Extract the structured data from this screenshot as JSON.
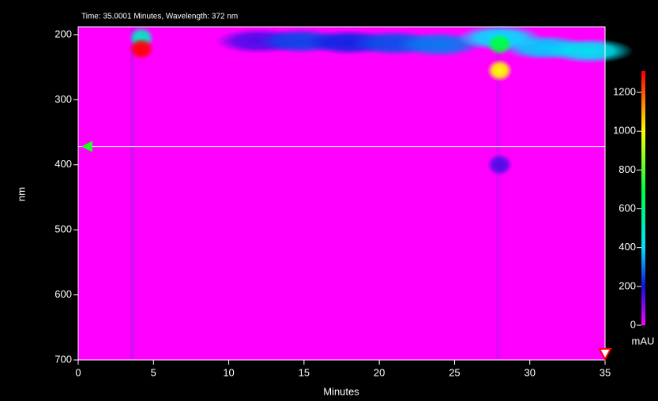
{
  "chart_data": {
    "type": "heatmap",
    "title": "Time: 35.0001 Minutes, Wavelength: 372 nm",
    "xlabel": "Minutes",
    "ylabel": "nm",
    "colorbar_label": "mAU",
    "xlim": [
      0,
      35
    ],
    "xticks": [
      0,
      5,
      10,
      15,
      20,
      25,
      30,
      35
    ],
    "ylim": [
      188,
      700
    ],
    "yticks": [
      200,
      300,
      400,
      500,
      600,
      700
    ],
    "y_inverted": true,
    "clim": [
      0,
      1310
    ],
    "cticks": [
      0,
      200,
      400,
      600,
      800,
      1000,
      1200
    ],
    "colorscale": [
      [
        0,
        "#ff00ff"
      ],
      [
        200,
        "#1010e0"
      ],
      [
        400,
        "#00e0ff"
      ],
      [
        700,
        "#00ff40"
      ],
      [
        1000,
        "#ffff00"
      ],
      [
        1300,
        "#ff0000"
      ]
    ],
    "cursor_time": 35.0001,
    "cursor_wavelength": 372,
    "peaks": [
      {
        "time": 12,
        "nm": 210,
        "value": 150
      },
      {
        "time": 14.8,
        "nm": 210,
        "value": 250
      },
      {
        "time": 18,
        "nm": 212,
        "value": 220
      },
      {
        "time": 21,
        "nm": 213,
        "value": 260
      },
      {
        "time": 24,
        "nm": 215,
        "value": 300
      },
      {
        "time": 31,
        "nm": 220,
        "value": 380
      },
      {
        "time": 34,
        "nm": 225,
        "value": 420
      },
      {
        "time": 28,
        "nm": 400,
        "value": 150
      },
      {
        "time": 28,
        "nm": 205,
        "value": 400
      },
      {
        "time": 28,
        "nm": 215,
        "value": 700
      },
      {
        "time": 28,
        "nm": 255,
        "value": 1000
      },
      {
        "time": 4.2,
        "nm": 205,
        "value": 500
      },
      {
        "time": 4.2,
        "nm": 222,
        "value": 1300
      }
    ]
  }
}
